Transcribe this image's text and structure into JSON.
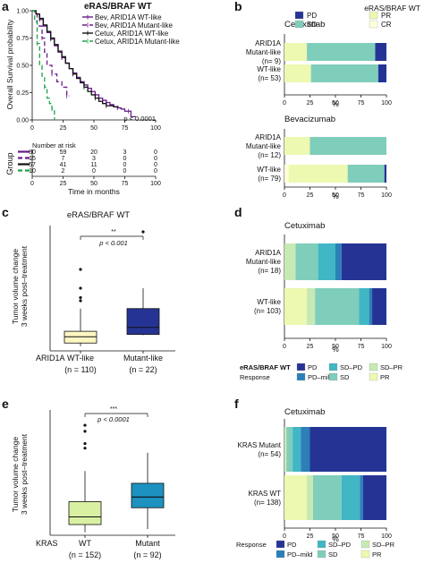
{
  "panel_labels": {
    "a": "a",
    "b": "b",
    "c": "c",
    "d": "d",
    "e": "e",
    "f": "f"
  },
  "colors": {
    "purple": "#6a1b8a",
    "green": "#1ea34a",
    "black": "#111111",
    "PD": "#253494",
    "PD_mild": "#2c7fb8",
    "SD_PD": "#41b6c4",
    "SD": "#7fcdbb",
    "SD_PR": "#c7e9b4",
    "PR": "#edf8b1",
    "CR": "#ffffd9",
    "boxC_wt": "#fdf6c3",
    "boxC_mut": "#253494",
    "boxE_wt": "#d9f0a3",
    "boxE_mut": "#1d91c0"
  },
  "chart_data": [
    {
      "id": "a",
      "type": "line",
      "title": "eRAS/BRAF WT",
      "ylabel": "Overall Survival probability",
      "xlabel": "Time in months",
      "ylim": [
        0,
        1
      ],
      "xlim": [
        0,
        100
      ],
      "yticks": [
        "1.00",
        "0.75",
        "0.50",
        "0.25",
        "0.00"
      ],
      "xticks": [
        "0",
        "25",
        "50",
        "75",
        "100"
      ],
      "annotation": "p < 0.0001",
      "series": [
        {
          "name": "Bev, ARID1A WT-like",
          "color": "purple",
          "dash": "",
          "x": [
            0,
            3,
            6,
            9,
            12,
            15,
            18,
            21,
            24,
            27,
            30,
            33,
            36,
            39,
            42,
            45,
            48,
            51,
            54,
            57,
            60,
            63,
            66,
            69,
            72,
            75,
            78,
            80,
            84
          ],
          "y": [
            1.0,
            0.97,
            0.92,
            0.86,
            0.8,
            0.74,
            0.68,
            0.62,
            0.57,
            0.52,
            0.47,
            0.43,
            0.39,
            0.35,
            0.32,
            0.29,
            0.26,
            0.23,
            0.2,
            0.18,
            0.16,
            0.14,
            0.12,
            0.11,
            0.1,
            0.08,
            0.08,
            0.03,
            0.03
          ]
        },
        {
          "name": "Bev, ARID1A Mutant-like",
          "color": "purple",
          "dash": "5,3",
          "x": [
            0,
            4,
            8,
            10,
            12,
            16,
            20,
            24,
            28,
            30
          ],
          "y": [
            1.0,
            0.86,
            0.75,
            0.62,
            0.5,
            0.42,
            0.35,
            0.3,
            0.22,
            0.22
          ]
        },
        {
          "name": "Cetux, ARID1A WT-like",
          "color": "black",
          "dash": "",
          "x": [
            0,
            3,
            6,
            9,
            12,
            15,
            18,
            21,
            24,
            27,
            30,
            33,
            36,
            39,
            42,
            45,
            48,
            51,
            54,
            57,
            60,
            66,
            70
          ],
          "y": [
            1.0,
            0.97,
            0.93,
            0.87,
            0.81,
            0.75,
            0.69,
            0.63,
            0.58,
            0.52,
            0.47,
            0.42,
            0.38,
            0.34,
            0.3,
            0.26,
            0.23,
            0.2,
            0.17,
            0.15,
            0.13,
            0.12,
            0.12
          ]
        },
        {
          "name": "Cetux, ARID1A Mutant-like",
          "color": "green",
          "dash": "5,3",
          "x": [
            0,
            2,
            4,
            6,
            8,
            10,
            12,
            14,
            16,
            18
          ],
          "y": [
            1.0,
            0.9,
            0.7,
            0.5,
            0.4,
            0.3,
            0.2,
            0.15,
            0.1,
            0.0
          ]
        }
      ],
      "risk_table": {
        "title": "Number at risk",
        "group_label": "Group",
        "rows": [
          {
            "color": "purple",
            "dash": "",
            "values": [
              "80",
              "59",
              "20",
              "3",
              "0"
            ]
          },
          {
            "color": "purple",
            "dash": "5,3",
            "values": [
              "15",
              "7",
              "3",
              "0",
              "0"
            ]
          },
          {
            "color": "black",
            "dash": "",
            "values": [
              "57",
              "41",
              "11",
              "0",
              "0"
            ]
          },
          {
            "color": "green",
            "dash": "5,3",
            "values": [
              "10",
              "2",
              "0",
              "0",
              "0"
            ]
          }
        ],
        "xticks": [
          "0",
          "25",
          "50",
          "75",
          "100"
        ]
      }
    },
    {
      "id": "b",
      "type": "bar",
      "orientation": "horizontal",
      "stacked": true,
      "legend_title": "eRAS/BRAF WT",
      "legend": [
        {
          "key": "PD",
          "label": "PD"
        },
        {
          "key": "PR",
          "label": "PR"
        },
        {
          "key": "SD",
          "label": "SD"
        },
        {
          "key": "CR",
          "label": "CR"
        }
      ],
      "xlabel": "%",
      "xticks": [
        "0",
        "25",
        "50",
        "75",
        "100"
      ],
      "facets": [
        {
          "title": "Cetuximab",
          "rows": [
            {
              "label": [
                "ARID1A",
                "Mutant-like",
                "(n= 9)"
              ],
              "segments": [
                {
                  "key": "CR",
                  "value": 0
                },
                {
                  "key": "PR",
                  "value": 22
                },
                {
                  "key": "SD",
                  "value": 67
                },
                {
                  "key": "PD",
                  "value": 11
                }
              ]
            },
            {
              "label": [
                "WT-like",
                "(n= 53)"
              ],
              "segments": [
                {
                  "key": "CR",
                  "value": 0
                },
                {
                  "key": "PR",
                  "value": 26
                },
                {
                  "key": "SD",
                  "value": 66
                },
                {
                  "key": "PD",
                  "value": 8
                }
              ]
            }
          ]
        },
        {
          "title": "Bevacizumab",
          "rows": [
            {
              "label": [
                "ARID1A",
                "Mutant-like",
                "(n= 12)"
              ],
              "segments": [
                {
                  "key": "CR",
                  "value": 0
                },
                {
                  "key": "PR",
                  "value": 25
                },
                {
                  "key": "SD",
                  "value": 75
                },
                {
                  "key": "PD",
                  "value": 0
                }
              ]
            },
            {
              "label": [
                "WT-like",
                "(n= 79)"
              ],
              "segments": [
                {
                  "key": "CR",
                  "value": 4
                },
                {
                  "key": "PR",
                  "value": 58
                },
                {
                  "key": "SD",
                  "value": 36
                },
                {
                  "key": "PD",
                  "value": 2
                }
              ]
            }
          ]
        }
      ]
    },
    {
      "id": "c",
      "type": "box",
      "title": "eRAS/BRAF WT",
      "ylabel": [
        "Tumor volume change",
        "3 weeks post–treatment"
      ],
      "group_label": "ARID1A",
      "categories": [
        {
          "label": "WT-like",
          "n": "(n = 110)",
          "color": "boxC_wt"
        },
        {
          "label": "Mutant-like",
          "n": "(n = 22)",
          "color": "boxC_mut"
        }
      ],
      "boxes": [
        {
          "q1": -0.5,
          "median": -0.1,
          "q3": 0.25,
          "lo": -0.7,
          "hi": 1.7,
          "outliers": [
            4.2,
            3.0,
            2.4,
            2.2
          ]
        },
        {
          "q1": 0.05,
          "median": 0.5,
          "q3": 1.7,
          "lo": 0.0,
          "hi": 3.0,
          "outliers": [
            6.6
          ]
        }
      ],
      "ylim": [
        -1,
        7
      ],
      "signif": "**",
      "pvalue": "p < 0.001"
    },
    {
      "id": "d",
      "type": "bar",
      "orientation": "horizontal",
      "stacked": true,
      "title": "Cetuximab",
      "xlabel": "%",
      "xticks": [
        "0",
        "25",
        "50",
        "75",
        "100"
      ],
      "rows": [
        {
          "label": [
            "ARID1A",
            "Mutant-like",
            "(n= 18)"
          ],
          "segments": [
            {
              "key": "PR",
              "value": 0
            },
            {
              "key": "SD_PR",
              "value": 11
            },
            {
              "key": "SD",
              "value": 22
            },
            {
              "key": "SD_PD",
              "value": 17
            },
            {
              "key": "PD_mild",
              "value": 6
            },
            {
              "key": "PD",
              "value": 44
            }
          ]
        },
        {
          "label": [
            "WT-like",
            "(n= 103)"
          ],
          "segments": [
            {
              "key": "PR",
              "value": 22
            },
            {
              "key": "SD_PR",
              "value": 8
            },
            {
              "key": "SD",
              "value": 43
            },
            {
              "key": "SD_PD",
              "value": 10
            },
            {
              "key": "PD_mild",
              "value": 3
            },
            {
              "key": "PD",
              "value": 14
            }
          ]
        }
      ],
      "legend_group": "eRAS/BRAF WT",
      "legend_title": "Response",
      "legend": [
        {
          "key": "PD",
          "label": "PD"
        },
        {
          "key": "SD_PD",
          "label": "SD–PD"
        },
        {
          "key": "SD_PR",
          "label": "SD–PR"
        },
        {
          "key": "PD_mild",
          "label": "PD–mild"
        },
        {
          "key": "SD",
          "label": "SD"
        },
        {
          "key": "PR",
          "label": "PR"
        }
      ]
    },
    {
      "id": "e",
      "type": "box",
      "ylabel": [
        "Tumor volume change",
        "3 weeks post–treatment"
      ],
      "group_label": "KRAS",
      "categories": [
        {
          "label": "WT",
          "n": "(n = 152)",
          "color": "boxE_wt"
        },
        {
          "label": "Mutant",
          "n": "(n = 92)",
          "color": "boxE_mut"
        }
      ],
      "boxes": [
        {
          "q1": -0.5,
          "median": 0.0,
          "q3": 1.0,
          "lo": -1.0,
          "hi": 3.0,
          "outliers": [
            6.0,
            5.6,
            4.8,
            4.5
          ]
        },
        {
          "q1": 0.6,
          "median": 1.3,
          "q3": 2.2,
          "lo": -0.8,
          "hi": 4.2,
          "outliers": []
        }
      ],
      "ylim": [
        -1.2,
        7
      ],
      "signif": "***",
      "pvalue": "p < 0.0001"
    },
    {
      "id": "f",
      "type": "bar",
      "orientation": "horizontal",
      "stacked": true,
      "title": "Cetuximab",
      "xlabel": "%",
      "xticks": [
        "0",
        "25",
        "50",
        "75",
        "100"
      ],
      "rows": [
        {
          "label": [
            "KRAS Mutant",
            "(n= 54)"
          ],
          "segments": [
            {
              "key": "PR",
              "value": 0
            },
            {
              "key": "SD_PR",
              "value": 2
            },
            {
              "key": "SD",
              "value": 6
            },
            {
              "key": "SD_PD",
              "value": 8
            },
            {
              "key": "PD_mild",
              "value": 9
            },
            {
              "key": "PD",
              "value": 75
            }
          ]
        },
        {
          "label": [
            "KRAS WT",
            "(n= 138)"
          ],
          "segments": [
            {
              "key": "PR",
              "value": 22
            },
            {
              "key": "SD_PR",
              "value": 6
            },
            {
              "key": "SD",
              "value": 28
            },
            {
              "key": "SD_PD",
              "value": 18
            },
            {
              "key": "PD_mild",
              "value": 3
            },
            {
              "key": "PD",
              "value": 23
            }
          ]
        }
      ],
      "legend_title": "Response",
      "legend": [
        {
          "key": "PD",
          "label": "PD"
        },
        {
          "key": "SD_PD",
          "label": "SD–PD"
        },
        {
          "key": "SD_PR",
          "label": "SD–PR"
        },
        {
          "key": "PD_mild",
          "label": "PD–mild"
        },
        {
          "key": "SD",
          "label": "SD"
        },
        {
          "key": "PR",
          "label": "PR"
        }
      ]
    }
  ]
}
